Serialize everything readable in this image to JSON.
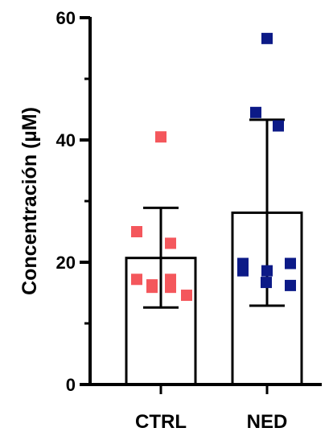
{
  "chart_data": {
    "type": "bar",
    "title": "",
    "xlabel": "",
    "ylabel": "Concentración (µM)",
    "ylim": [
      0,
      60
    ],
    "yticks": [
      "0",
      "20",
      "40",
      "60"
    ],
    "grid": false,
    "legend": "none",
    "categories": [
      "CTRL",
      "NED"
    ],
    "series": [
      {
        "category": "CTRL",
        "mean": 20.7,
        "error_upper": 28.9,
        "error_lower": 12.6,
        "color": "#f4575c",
        "marker": "square",
        "points": [
          40.5,
          25.0,
          23.1,
          17.2,
          17.2,
          16.3,
          15.9,
          15.9,
          14.6
        ]
      },
      {
        "category": "NED",
        "mean": 28.1,
        "error_upper": 43.3,
        "error_lower": 12.9,
        "color": "#0c1a87",
        "marker": "square",
        "points": [
          56.6,
          44.5,
          42.3,
          19.8,
          19.8,
          18.6,
          18.6,
          16.7,
          16.2
        ]
      }
    ]
  }
}
